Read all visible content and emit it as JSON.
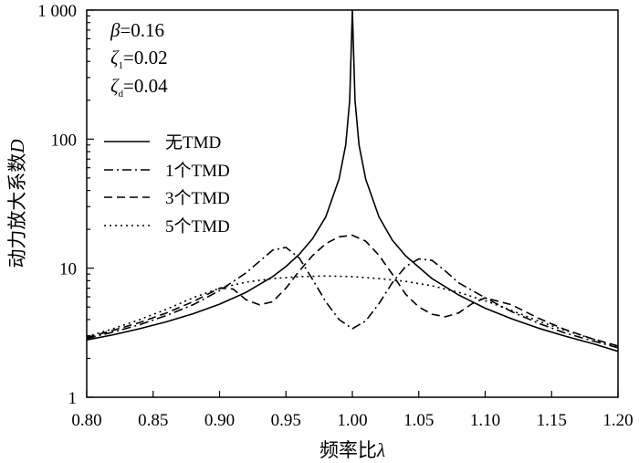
{
  "chart_data": {
    "type": "line",
    "title": "",
    "xlabel": "频率比λ",
    "xlabel_main": "频率比",
    "xlabel_symbol": "λ",
    "ylabel": "动力放大系数D",
    "ylabel_main": "动力放大系数",
    "ylabel_symbol": "D",
    "xlim": [
      0.8,
      1.2
    ],
    "ylim": [
      1,
      1000
    ],
    "yscale": "log",
    "grid": false,
    "legend_position": "left",
    "x_tick_labels": [
      "0.80",
      "0.85",
      "0.90",
      "0.95",
      "1.00",
      "1.05",
      "1.10",
      "1.15",
      "1.20"
    ],
    "y_tick_labels": [
      "1",
      "10",
      "100",
      "1 000"
    ],
    "parameters": [
      {
        "symbol": "β",
        "sub": "",
        "value": "=0.16"
      },
      {
        "symbol": "ζ",
        "sub": "1",
        "value": "=0.02"
      },
      {
        "symbol": "ζ",
        "sub": "d",
        "value": "=0.04"
      }
    ],
    "series": [
      {
        "name": "无TMD",
        "dash": "solid",
        "x": [
          0.8,
          0.82,
          0.84,
          0.86,
          0.88,
          0.9,
          0.92,
          0.94,
          0.95,
          0.96,
          0.97,
          0.98,
          0.99,
          0.995,
          0.998,
          1.0,
          1.002,
          1.005,
          1.01,
          1.02,
          1.03,
          1.04,
          1.06,
          1.08,
          1.1,
          1.12,
          1.14,
          1.16,
          1.18,
          1.2
        ],
        "values": [
          2.78,
          3.05,
          3.4,
          3.84,
          4.43,
          5.26,
          6.5,
          8.6,
          10.3,
          12.8,
          16.9,
          25.0,
          49,
          90,
          200,
          1000,
          200,
          90,
          49,
          25.0,
          16.5,
          12.5,
          8.3,
          6.2,
          4.9,
          4.05,
          3.43,
          2.98,
          2.62,
          2.27
        ]
      },
      {
        "name": "1个TMD",
        "dash": "dashdot",
        "x": [
          0.8,
          0.82,
          0.84,
          0.86,
          0.88,
          0.9,
          0.92,
          0.93,
          0.94,
          0.95,
          0.96,
          0.97,
          0.98,
          0.99,
          1.0,
          1.01,
          1.02,
          1.03,
          1.04,
          1.05,
          1.06,
          1.07,
          1.08,
          1.1,
          1.12,
          1.14,
          1.16,
          1.18,
          1.2
        ],
        "values": [
          2.85,
          3.2,
          3.65,
          4.3,
          5.2,
          6.7,
          9.2,
          11.3,
          13.8,
          14.5,
          12.0,
          8.2,
          5.5,
          4.0,
          3.4,
          3.9,
          5.3,
          7.7,
          10.3,
          11.8,
          11.5,
          9.5,
          7.7,
          5.9,
          4.6,
          3.75,
          3.15,
          2.75,
          2.42
        ]
      },
      {
        "name": "3个TMD",
        "dash": "dashed",
        "x": [
          0.8,
          0.82,
          0.84,
          0.86,
          0.88,
          0.9,
          0.91,
          0.92,
          0.93,
          0.94,
          0.95,
          0.96,
          0.97,
          0.98,
          0.99,
          1.0,
          1.01,
          1.02,
          1.03,
          1.04,
          1.05,
          1.06,
          1.07,
          1.08,
          1.09,
          1.1,
          1.12,
          1.14,
          1.16,
          1.18,
          1.2
        ],
        "values": [
          2.9,
          3.3,
          3.8,
          4.5,
          5.5,
          7.0,
          6.9,
          5.7,
          5.2,
          5.5,
          7.0,
          9.5,
          12.5,
          15.5,
          17.5,
          18.0,
          16.2,
          12.6,
          9.0,
          6.3,
          5.0,
          4.4,
          4.2,
          4.5,
          5.3,
          5.9,
          5.2,
          4.1,
          3.35,
          2.85,
          2.5
        ]
      },
      {
        "name": "5个TMD",
        "dash": "dotted",
        "x": [
          0.8,
          0.82,
          0.84,
          0.86,
          0.88,
          0.9,
          0.92,
          0.94,
          0.96,
          0.98,
          1.0,
          1.02,
          1.04,
          1.06,
          1.08,
          1.1,
          1.12,
          1.14,
          1.16,
          1.18,
          1.2
        ],
        "values": [
          2.95,
          3.4,
          4.0,
          4.8,
          5.9,
          7.0,
          7.8,
          8.3,
          8.6,
          8.7,
          8.6,
          8.3,
          7.9,
          7.3,
          6.5,
          5.6,
          4.7,
          3.9,
          3.3,
          2.85,
          2.45
        ]
      }
    ]
  }
}
